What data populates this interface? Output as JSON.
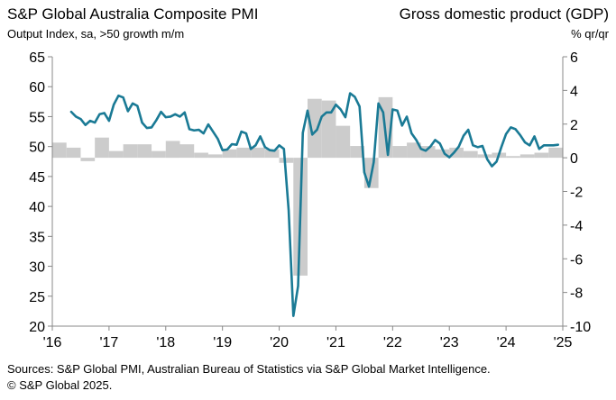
{
  "header": {
    "title_left": "S&P Global Australia Composite PMI",
    "subtitle_left": "Output  Index, sa, >50 growth m/m",
    "title_right": "Gross domestic product (GDP)",
    "subtitle_right": "% qr/qr"
  },
  "footer": {
    "source": "Sources: S&P Global PMI, Australian Bureau of Statistics via S&P Global Market Intelligence.",
    "copyright": "© S&P Global 2025."
  },
  "colors": {
    "line": "#1a7a95",
    "bar": "#cccccc",
    "axis": "#888888"
  },
  "chart_data": {
    "type": "bar+line",
    "x_tick_labels": [
      "'16",
      "'17",
      "'18",
      "'19",
      "'20",
      "'21",
      "'22",
      "'23",
      "'24",
      "'25"
    ],
    "y_left": {
      "label": "",
      "ticks": [
        20,
        25,
        30,
        35,
        40,
        45,
        50,
        55,
        60,
        65
      ],
      "lim": [
        20,
        65
      ]
    },
    "y_right": {
      "label": "% qr/qr",
      "ticks": [
        -10,
        -8,
        -6,
        -4,
        -2,
        0,
        2,
        4,
        6
      ],
      "lim": [
        -10,
        6
      ]
    },
    "grid": false,
    "series": [
      {
        "name": "Composite PMI",
        "kind": "line",
        "axis": "left",
        "start": "2016-05",
        "values": [
          55.8,
          55.0,
          54.6,
          53.6,
          54.3,
          54.0,
          55.4,
          55.6,
          54.3,
          57.0,
          58.5,
          58.2,
          55.9,
          57.2,
          56.8,
          54.0,
          53.1,
          53.2,
          54.4,
          55.8,
          54.9,
          55.0,
          55.4,
          55.0,
          55.7,
          52.9,
          52.7,
          52.8,
          52.2,
          53.7,
          52.5,
          51.3,
          49.4,
          49.5,
          50.4,
          50.3,
          52.5,
          52.2,
          49.6,
          50.2,
          51.7,
          49.9,
          49.4,
          49.3,
          50.2,
          49.6,
          39.4,
          21.7,
          26.7,
          52.3,
          56.0,
          52.0,
          52.8,
          55.0,
          55.7,
          55.7,
          57.0,
          56.2,
          54.9,
          58.9,
          58.3,
          56.7,
          45.7,
          43.3,
          47.4,
          57.2,
          55.7,
          48.6,
          56.2,
          56.0,
          53.5,
          55.0,
          52.2,
          51.1,
          49.6,
          49.3,
          50.0,
          51.1,
          50.5,
          48.8,
          48.2,
          49.0,
          50.0,
          51.8,
          52.8,
          50.2,
          49.9,
          50.1,
          47.9,
          46.7,
          47.5,
          49.9,
          52.1,
          53.2,
          52.9,
          51.9,
          50.7,
          50.2,
          51.7,
          49.6,
          50.2,
          50.2,
          50.2,
          50.3
        ]
      },
      {
        "name": "GDP",
        "kind": "bar",
        "axis": "right",
        "periods": [
          "2016Q1",
          "2016Q2",
          "2016Q3",
          "2016Q4",
          "2017Q1",
          "2017Q2",
          "2017Q3",
          "2017Q4",
          "2018Q1",
          "2018Q2",
          "2018Q3",
          "2018Q4",
          "2019Q1",
          "2019Q2",
          "2019Q3",
          "2019Q4",
          "2020Q1",
          "2020Q2",
          "2020Q3",
          "2020Q4",
          "2021Q1",
          "2021Q2",
          "2021Q3",
          "2021Q4",
          "2022Q1",
          "2022Q2",
          "2022Q3",
          "2022Q4",
          "2023Q1",
          "2023Q2",
          "2023Q3",
          "2023Q4",
          "2024Q1",
          "2024Q2",
          "2024Q3",
          "2024Q4"
        ],
        "values": [
          0.9,
          0.6,
          -0.2,
          1.2,
          0.4,
          0.8,
          0.8,
          0.4,
          1.0,
          0.8,
          0.3,
          0.2,
          0.5,
          0.6,
          0.6,
          0.5,
          -0.3,
          -7.0,
          3.5,
          3.4,
          1.9,
          0.7,
          -1.8,
          3.6,
          0.7,
          0.9,
          0.7,
          0.5,
          0.6,
          0.4,
          0.2,
          0.3,
          0.1,
          0.2,
          0.3,
          0.6
        ]
      }
    ]
  }
}
